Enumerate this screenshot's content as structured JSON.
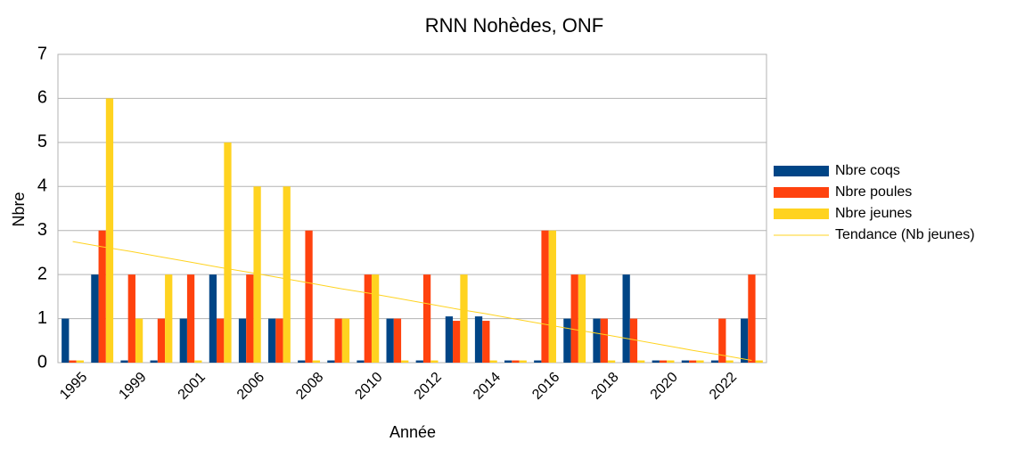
{
  "chart_data": {
    "type": "bar",
    "title": "RNN Nohèdes, ONF",
    "x_label": "Année",
    "y_label": "Nbre",
    "categories": [
      "1995",
      null,
      "1999",
      null,
      "2001",
      null,
      "2006",
      null,
      "2008",
      null,
      "2010",
      null,
      "2012",
      null,
      "2014",
      null,
      "2016",
      null,
      "2018",
      null,
      "2020",
      null,
      "2022",
      null
    ],
    "series": [
      {
        "name": "Nbre coqs",
        "color": "#004586",
        "values": [
          1,
          2,
          0.05,
          0.05,
          1,
          2,
          1,
          1,
          0.05,
          0.05,
          0.05,
          1,
          0.05,
          1.05,
          1.05,
          0.05,
          0.05,
          1,
          1,
          2,
          0.05,
          0.05,
          0.05,
          1
        ]
      },
      {
        "name": "Nbre poules",
        "color": "#ff420e",
        "values": [
          0.05,
          3,
          2,
          1,
          2,
          1,
          2,
          1,
          3,
          1,
          2,
          1,
          2,
          0.95,
          0.95,
          0.05,
          3,
          2,
          1,
          1,
          0.05,
          0.05,
          1,
          2
        ]
      },
      {
        "name": "Nbre jeunes",
        "color": "#ffd320",
        "values": [
          0.05,
          6,
          1,
          2,
          0.05,
          5,
          4,
          4,
          0.05,
          1,
          2,
          0.05,
          0.05,
          2,
          0.05,
          0.05,
          3,
          2,
          0.05,
          0.05,
          0.05,
          0.05,
          0.05,
          0.05
        ]
      },
      {
        "name": "Tendance (Nb jeunes)",
        "color": "#ffd320",
        "type": "line",
        "values": [
          2.75,
          2.63,
          2.52,
          2.4,
          2.28,
          2.16,
          2.05,
          1.93,
          1.81,
          1.69,
          1.58,
          1.46,
          1.34,
          1.22,
          1.11,
          0.99,
          0.87,
          0.75,
          0.64,
          0.52,
          0.4,
          0.28,
          0.17,
          0.05
        ]
      }
    ],
    "ylim": [
      0,
      7
    ],
    "yticks": [
      0,
      1,
      2,
      3,
      4,
      5,
      6,
      7
    ],
    "grid": true,
    "legend": "right"
  }
}
